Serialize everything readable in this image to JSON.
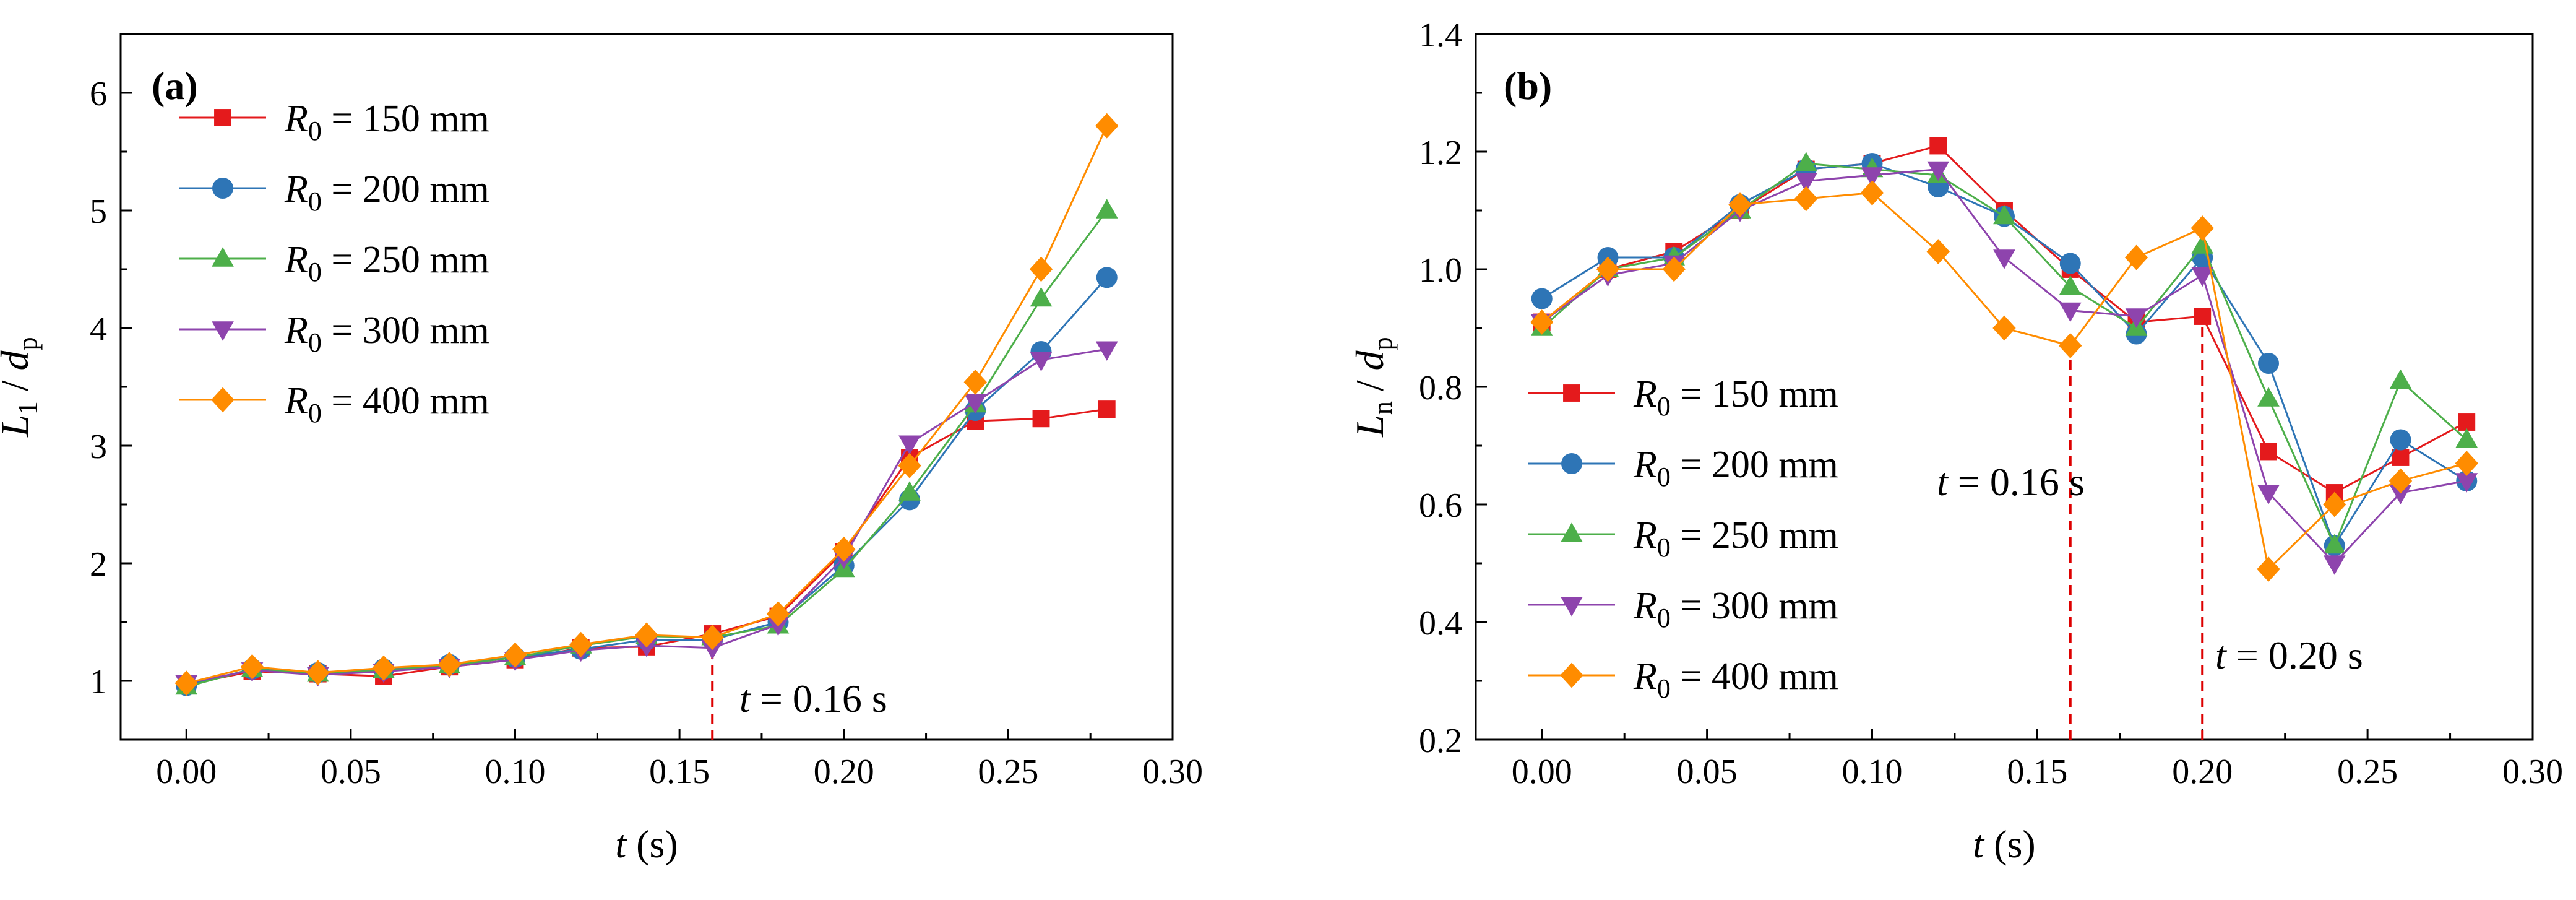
{
  "colors": {
    "r150": "#e41a1c",
    "r200": "#2e75b6",
    "r250": "#4daf4a",
    "r300": "#8e44ad",
    "r400": "#ff8c00",
    "marker_line": "#dd0000"
  },
  "chart_data": [
    {
      "type": "line",
      "panel_label": "(a)",
      "x_var": "t",
      "x_unit": "(s)",
      "y_var": "L",
      "y_sub": "1",
      "y_den": "d",
      "y_den_sub": "p",
      "xlim": [
        -0.02,
        0.3
      ],
      "ylim": [
        0.5,
        6.5
      ],
      "xticks": [
        0.0,
        0.05,
        0.1,
        0.15,
        0.2,
        0.25,
        0.3
      ],
      "xtick_labels": [
        "0.00",
        "0.05",
        "0.10",
        "0.15",
        "0.20",
        "0.25",
        "0.30"
      ],
      "yticks": [
        1,
        2,
        3,
        4,
        5,
        6
      ],
      "ytick_labels": [
        "1",
        "2",
        "3",
        "4",
        "5",
        "6"
      ],
      "legend_position": "top-left",
      "x": [
        0.0,
        0.02,
        0.04,
        0.06,
        0.08,
        0.1,
        0.12,
        0.14,
        0.16,
        0.18,
        0.2,
        0.22,
        0.24,
        0.26,
        0.28
      ],
      "series": [
        {
          "key": "r150",
          "marker": "square",
          "legend_var": "R",
          "legend_sub": "0",
          "legend_rest": " = 150 mm",
          "values": [
            0.97,
            1.08,
            1.06,
            1.04,
            1.12,
            1.18,
            1.28,
            1.29,
            1.4,
            1.55,
            2.1,
            2.9,
            3.21,
            3.23,
            3.31
          ]
        },
        {
          "key": "r200",
          "marker": "circle",
          "legend_var": "R",
          "legend_sub": "0",
          "legend_rest": " = 200 mm",
          "values": [
            0.96,
            1.1,
            1.07,
            1.1,
            1.14,
            1.2,
            1.27,
            1.35,
            1.35,
            1.5,
            1.98,
            2.54,
            3.3,
            3.8,
            4.43
          ]
        },
        {
          "key": "r250",
          "marker": "triangle-up",
          "legend_var": "R",
          "legend_sub": "0",
          "legend_rest": " = 250 mm",
          "values": [
            0.95,
            1.1,
            1.06,
            1.09,
            1.13,
            1.2,
            1.3,
            1.38,
            1.37,
            1.47,
            1.95,
            2.6,
            3.35,
            4.25,
            5.0
          ]
        },
        {
          "key": "r300",
          "marker": "triangle-down",
          "legend_var": "R",
          "legend_sub": "0",
          "legend_rest": " = 300 mm",
          "values": [
            0.98,
            1.09,
            1.05,
            1.08,
            1.12,
            1.18,
            1.26,
            1.3,
            1.28,
            1.48,
            2.05,
            3.02,
            3.37,
            3.73,
            3.82
          ]
        },
        {
          "key": "r400",
          "marker": "diamond",
          "legend_var": "R",
          "legend_sub": "0",
          "legend_rest": " = 400 mm",
          "values": [
            0.98,
            1.12,
            1.07,
            1.11,
            1.14,
            1.22,
            1.31,
            1.39,
            1.37,
            1.57,
            2.12,
            2.83,
            3.54,
            4.5,
            5.72
          ]
        }
      ],
      "vlines": [
        {
          "x": 0.16,
          "text_var": "t",
          "text_rest": " = 0.16 s"
        }
      ]
    },
    {
      "type": "line",
      "panel_label": "(b)",
      "x_var": "t",
      "x_unit": "(s)",
      "y_var": "L",
      "y_sub": "n",
      "y_den": "d",
      "y_den_sub": "p",
      "xlim": [
        -0.02,
        0.3
      ],
      "ylim": [
        0.2,
        1.4
      ],
      "xticks": [
        0.0,
        0.05,
        0.1,
        0.15,
        0.2,
        0.25,
        0.3
      ],
      "xtick_labels": [
        "0.00",
        "0.05",
        "0.10",
        "0.15",
        "0.20",
        "0.25",
        "0.30"
      ],
      "yticks": [
        0.2,
        0.4,
        0.6,
        0.8,
        1.0,
        1.2,
        1.4
      ],
      "ytick_labels": [
        "0.2",
        "0.4",
        "0.6",
        "0.8",
        "1.0",
        "1.2",
        "1.4"
      ],
      "legend_position": "bottom-left",
      "x": [
        0.0,
        0.02,
        0.04,
        0.06,
        0.08,
        0.1,
        0.12,
        0.14,
        0.16,
        0.18,
        0.2,
        0.22,
        0.24,
        0.26,
        0.28
      ],
      "series": [
        {
          "key": "r150",
          "marker": "square",
          "legend_var": "R",
          "legend_sub": "0",
          "legend_rest": " = 150 mm",
          "values": [
            0.91,
            1.0,
            1.03,
            1.1,
            1.17,
            1.18,
            1.21,
            1.1,
            1.0,
            0.91,
            0.92,
            0.69,
            0.62,
            0.68,
            0.74
          ]
        },
        {
          "key": "r200",
          "marker": "circle",
          "legend_var": "R",
          "legend_sub": "0",
          "legend_rest": " = 200 mm",
          "values": [
            0.95,
            1.02,
            1.02,
            1.11,
            1.17,
            1.18,
            1.14,
            1.09,
            1.01,
            0.89,
            1.02,
            0.84,
            0.53,
            0.71,
            0.64
          ]
        },
        {
          "key": "r250",
          "marker": "triangle-up",
          "legend_var": "R",
          "legend_sub": "0",
          "legend_rest": " = 250 mm",
          "values": [
            0.9,
            1.0,
            1.02,
            1.1,
            1.18,
            1.17,
            1.16,
            1.09,
            0.97,
            0.9,
            1.04,
            0.78,
            0.53,
            0.81,
            0.71
          ]
        },
        {
          "key": "r300",
          "marker": "triangle-down",
          "legend_var": "R",
          "legend_sub": "0",
          "legend_rest": " = 300 mm",
          "values": [
            0.91,
            0.99,
            1.01,
            1.1,
            1.15,
            1.16,
            1.17,
            1.02,
            0.93,
            0.92,
            0.99,
            0.62,
            0.5,
            0.62,
            0.64
          ]
        },
        {
          "key": "r400",
          "marker": "diamond",
          "legend_var": "R",
          "legend_sub": "0",
          "legend_rest": " = 400 mm",
          "values": [
            0.91,
            1.0,
            1.0,
            1.11,
            1.12,
            1.13,
            1.03,
            0.9,
            0.87,
            1.02,
            1.07,
            0.49,
            0.6,
            0.64,
            0.67
          ]
        }
      ],
      "vlines": [
        {
          "x": 0.16,
          "text_var": "t",
          "text_rest": " = 0.16 s"
        },
        {
          "x": 0.2,
          "text_var": "t",
          "text_rest": " = 0.20 s"
        }
      ]
    }
  ]
}
